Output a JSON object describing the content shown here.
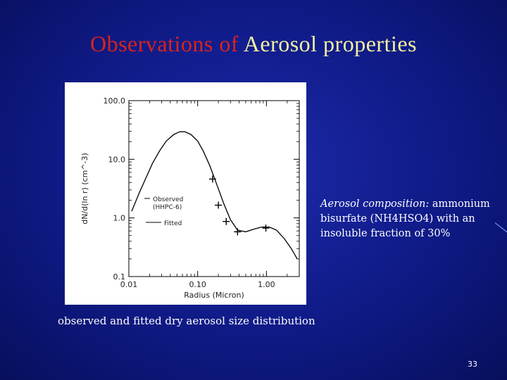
{
  "slide": {
    "title_part1": "Observations of",
    "title_part2": "Aerosol properties",
    "caption": "observed and fitted dry aerosol size distribution",
    "composition_lead": "Aerosol composition:",
    "composition_rest": " ammonium bisurfate (NH4HSO4) with an insoluble fraction of 30%",
    "page_number": "33"
  },
  "chart_data": {
    "type": "line",
    "xlabel": "Radius (Micron)",
    "ylabel": "dN/d(ln r) (cm^-3)",
    "x_scale": "log",
    "y_scale": "log",
    "xlim": [
      0.01,
      3.0
    ],
    "ylim": [
      0.1,
      100.0
    ],
    "x_ticks": [
      0.01,
      0.1,
      1.0
    ],
    "x_tick_labels": [
      "0.01",
      "0.10",
      "1.00"
    ],
    "y_ticks": [
      0.1,
      1.0,
      10.0,
      100.0
    ],
    "y_tick_labels": [
      "0.1",
      "1.0",
      "10.0",
      "100.0"
    ],
    "grid": false,
    "legend_position": "left-middle",
    "series": [
      {
        "name": "Fitted",
        "style": "line",
        "x": [
          0.011,
          0.014,
          0.018,
          0.022,
          0.028,
          0.035,
          0.045,
          0.055,
          0.065,
          0.08,
          0.1,
          0.12,
          0.15,
          0.19,
          0.24,
          0.3,
          0.38,
          0.5,
          0.65,
          0.85,
          1.1,
          1.4,
          1.8,
          2.3,
          2.8
        ],
        "y": [
          1.3,
          2.6,
          5.0,
          8.5,
          14.0,
          20.5,
          26.5,
          29.5,
          29.5,
          26.5,
          20.5,
          14.0,
          7.8,
          3.7,
          1.75,
          0.93,
          0.62,
          0.58,
          0.64,
          0.7,
          0.7,
          0.62,
          0.45,
          0.3,
          0.2
        ]
      },
      {
        "name": "Observed (HHPC-6)",
        "style": "markers",
        "x": [
          0.165,
          0.2,
          0.26,
          0.38,
          0.98
        ],
        "y": [
          4.6,
          1.65,
          0.87,
          0.58,
          0.67
        ]
      }
    ]
  }
}
